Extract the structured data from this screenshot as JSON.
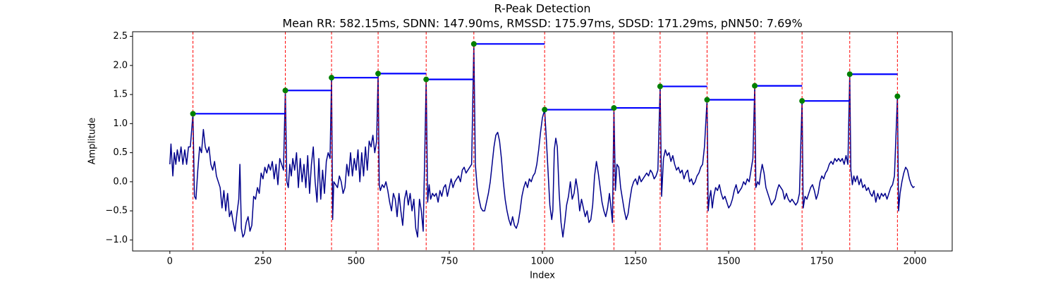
{
  "chart_data": {
    "type": "line",
    "title": "R-Peak Detection",
    "subtitle": "Mean RR: 582.15ms, SDNN: 147.90ms, RMSSD: 175.97ms, SDSD: 171.29ms, pNN50: 7.69%",
    "xlabel": "Index",
    "ylabel": "Amplitude",
    "xlim": [
      -100,
      2100
    ],
    "ylim": [
      -1.19,
      2.58
    ],
    "xticks": [
      0,
      250,
      500,
      750,
      1000,
      1250,
      1500,
      1750,
      2000
    ],
    "yticks": [
      {
        "value": -1.0,
        "label": "−1.0"
      },
      {
        "value": -0.5,
        "label": "−0.5"
      },
      {
        "value": 0,
        "label": "0.0"
      },
      0.5,
      {
        "value": 1,
        "label": "1.0"
      },
      1.5,
      {
        "value": 2,
        "label": "2.0"
      },
      2.5
    ],
    "x": [
      0,
      3,
      8,
      12,
      16,
      20,
      25,
      30,
      35,
      40,
      45,
      50,
      55,
      62,
      66,
      70,
      75,
      80,
      85,
      90,
      95,
      100,
      105,
      110,
      115,
      120,
      125,
      130,
      135,
      140,
      145,
      150,
      155,
      160,
      165,
      170,
      175,
      180,
      185,
      188,
      192,
      196,
      200,
      205,
      210,
      215,
      220,
      225,
      230,
      235,
      240,
      245,
      250,
      255,
      260,
      265,
      270,
      275,
      280,
      285,
      290,
      295,
      300,
      305,
      310,
      314,
      318,
      322,
      326,
      330,
      335,
      340,
      345,
      350,
      355,
      360,
      365,
      370,
      375,
      380,
      385,
      390,
      395,
      400,
      405,
      410,
      415,
      420,
      425,
      430,
      434,
      437,
      440,
      445,
      450,
      455,
      460,
      465,
      470,
      475,
      480,
      485,
      490,
      495,
      500,
      505,
      510,
      515,
      520,
      525,
      530,
      535,
      540,
      545,
      550,
      555,
      559,
      562,
      565,
      570,
      575,
      580,
      585,
      590,
      595,
      600,
      605,
      610,
      615,
      620,
      625,
      630,
      635,
      640,
      645,
      650,
      655,
      660,
      665,
      670,
      675,
      680,
      684,
      688,
      692,
      696,
      700,
      705,
      710,
      715,
      720,
      725,
      730,
      735,
      740,
      745,
      750,
      755,
      760,
      765,
      770,
      775,
      780,
      785,
      790,
      795,
      800,
      805,
      810,
      816,
      820,
      825,
      830,
      835,
      840,
      845,
      850,
      855,
      860,
      865,
      870,
      875,
      880,
      885,
      890,
      895,
      900,
      905,
      910,
      915,
      920,
      925,
      930,
      935,
      940,
      945,
      950,
      955,
      960,
      965,
      970,
      975,
      980,
      985,
      990,
      995,
      1000,
      1006,
      1010,
      1015,
      1020,
      1025,
      1028,
      1032,
      1036,
      1040,
      1045,
      1050,
      1055,
      1060,
      1065,
      1070,
      1075,
      1080,
      1085,
      1090,
      1095,
      1100,
      1105,
      1110,
      1115,
      1120,
      1125,
      1130,
      1135,
      1140,
      1145,
      1150,
      1155,
      1160,
      1165,
      1170,
      1175,
      1180,
      1185,
      1188,
      1192,
      1196,
      1200,
      1205,
      1210,
      1215,
      1220,
      1225,
      1230,
      1235,
      1240,
      1245,
      1250,
      1255,
      1260,
      1265,
      1270,
      1275,
      1280,
      1285,
      1290,
      1295,
      1300,
      1305,
      1310,
      1316,
      1320,
      1325,
      1330,
      1335,
      1340,
      1345,
      1350,
      1355,
      1360,
      1365,
      1370,
      1375,
      1380,
      1385,
      1390,
      1395,
      1400,
      1405,
      1410,
      1415,
      1420,
      1425,
      1430,
      1435,
      1442,
      1445,
      1448,
      1452,
      1456,
      1460,
      1465,
      1470,
      1475,
      1480,
      1485,
      1490,
      1495,
      1500,
      1505,
      1510,
      1515,
      1520,
      1525,
      1530,
      1535,
      1540,
      1545,
      1550,
      1555,
      1560,
      1565,
      1570,
      1573,
      1578,
      1582,
      1586,
      1590,
      1595,
      1600,
      1605,
      1610,
      1615,
      1620,
      1625,
      1630,
      1635,
      1640,
      1645,
      1650,
      1655,
      1660,
      1665,
      1670,
      1675,
      1680,
      1685,
      1690,
      1697,
      1700,
      1705,
      1710,
      1715,
      1720,
      1725,
      1730,
      1735,
      1740,
      1745,
      1750,
      1755,
      1760,
      1765,
      1770,
      1775,
      1780,
      1785,
      1790,
      1795,
      1800,
      1805,
      1810,
      1815,
      1820,
      1825,
      1828,
      1832,
      1836,
      1840,
      1845,
      1850,
      1855,
      1860,
      1865,
      1870,
      1875,
      1880,
      1885,
      1890,
      1895,
      1900,
      1905,
      1910,
      1915,
      1920,
      1925,
      1930,
      1935,
      1940,
      1945,
      1953,
      1956,
      1960,
      1965,
      1970,
      1975,
      1980,
      1985,
      1990,
      1995,
      1999
    ],
    "series": [
      {
        "color": "#00008b",
        "values": [
          0.3,
          0.65,
          0.1,
          0.5,
          0.3,
          0.55,
          0.35,
          0.6,
          0.3,
          0.55,
          0.3,
          0.6,
          0.6,
          1.17,
          -0.25,
          -0.3,
          0.2,
          0.6,
          0.5,
          0.9,
          0.6,
          0.5,
          0.6,
          0.3,
          0.2,
          0.35,
          0.1,
          0.0,
          -0.1,
          -0.45,
          -0.15,
          -0.5,
          -0.2,
          -0.6,
          -0.5,
          -0.7,
          -0.85,
          -0.55,
          -0.3,
          0.3,
          -0.8,
          -0.95,
          -0.9,
          -0.7,
          -0.6,
          -0.85,
          -0.75,
          -0.25,
          -0.3,
          -0.1,
          -0.2,
          0.15,
          0.05,
          0.25,
          0.15,
          0.3,
          0.2,
          0.35,
          0.05,
          0.3,
          -0.05,
          0.4,
          0.3,
          0.2,
          1.57,
          0.0,
          -0.1,
          0.3,
          0.1,
          0.4,
          0.2,
          0.5,
          -0.1,
          0.4,
          0.0,
          0.3,
          -0.1,
          0.45,
          -0.2,
          0.3,
          0.6,
          0.0,
          -0.35,
          0.4,
          -0.3,
          0.2,
          -0.2,
          0.35,
          0.5,
          0.4,
          1.79,
          -0.65,
          0.0,
          -0.05,
          -0.1,
          0.1,
          0.0,
          -0.2,
          -0.1,
          0.3,
          0.1,
          0.5,
          0.1,
          0.4,
          0.2,
          0.55,
          0.0,
          0.5,
          0.1,
          0.6,
          0.2,
          0.7,
          0.6,
          0.8,
          0.5,
          0.7,
          1.86,
          -0.05,
          -0.15,
          -0.05,
          -0.1,
          0.0,
          -0.15,
          -0.35,
          -0.5,
          -0.2,
          -0.3,
          -0.6,
          -0.2,
          -0.5,
          -0.75,
          -0.3,
          -0.15,
          -0.4,
          -0.2,
          -0.5,
          -0.3,
          -0.8,
          -0.95,
          -0.3,
          -0.5,
          -0.85,
          0.4,
          1.76,
          -0.35,
          -0.05,
          -0.3,
          -0.2,
          -0.25,
          -0.2,
          -0.35,
          -0.15,
          -0.25,
          -0.1,
          -0.05,
          -0.25,
          -0.1,
          0.05,
          -0.1,
          0.0,
          0.05,
          0.1,
          0.0,
          0.2,
          0.25,
          0.15,
          0.2,
          0.25,
          0.3,
          2.37,
          0.3,
          -0.1,
          -0.3,
          -0.45,
          -0.5,
          -0.5,
          -0.35,
          -0.2,
          0.0,
          0.3,
          0.6,
          0.8,
          0.85,
          0.7,
          0.4,
          0.0,
          -0.3,
          -0.5,
          -0.65,
          -0.75,
          -0.6,
          -0.75,
          -0.8,
          -0.7,
          -0.5,
          -0.25,
          -0.1,
          0.0,
          -0.1,
          0.05,
          0.0,
          0.1,
          0.15,
          0.3,
          0.55,
          0.85,
          1.1,
          1.24,
          0.8,
          0.2,
          -0.4,
          -0.65,
          -0.5,
          0.55,
          0.75,
          0.6,
          -0.2,
          -0.7,
          -0.95,
          -0.7,
          -0.4,
          -0.25,
          0.0,
          -0.3,
          -0.2,
          0.05,
          -0.15,
          -0.5,
          -0.3,
          -0.45,
          -0.6,
          -0.5,
          -0.7,
          -0.65,
          -0.4,
          0.1,
          0.35,
          0.15,
          -0.1,
          -0.35,
          -0.5,
          -0.6,
          -0.45,
          -0.2,
          -0.5,
          -0.7,
          1.27,
          -0.15,
          0.3,
          0.25,
          -0.1,
          -0.3,
          -0.5,
          -0.65,
          -0.55,
          -0.3,
          -0.1,
          0.0,
          0.05,
          -0.05,
          0.1,
          0.0,
          0.05,
          0.1,
          0.15,
          0.1,
          0.2,
          0.15,
          0.05,
          0.1,
          0.2,
          1.64,
          -0.25,
          0.4,
          0.55,
          0.45,
          0.5,
          0.35,
          0.45,
          0.3,
          0.2,
          0.25,
          0.15,
          0.2,
          0.05,
          0.15,
          0.2,
          0.0,
          0.05,
          -0.05,
          0.0,
          0.1,
          0.15,
          0.25,
          0.3,
          0.6,
          1.41,
          -0.5,
          -0.3,
          -0.15,
          -0.45,
          -0.25,
          -0.1,
          -0.15,
          -0.05,
          -0.2,
          -0.3,
          -0.25,
          -0.35,
          -0.45,
          -0.4,
          -0.3,
          -0.15,
          -0.05,
          -0.2,
          -0.15,
          -0.1,
          0.0,
          -0.05,
          0.05,
          0.0,
          0.2,
          0.4,
          1.65,
          -0.1,
          0.0,
          -0.05,
          0.15,
          0.3,
          0.15,
          -0.1,
          -0.2,
          -0.3,
          -0.4,
          -0.35,
          -0.3,
          -0.15,
          -0.05,
          -0.1,
          -0.15,
          -0.3,
          -0.2,
          -0.3,
          -0.35,
          -0.3,
          -0.35,
          -0.4,
          -0.35,
          -0.2,
          1.39,
          -0.45,
          -0.25,
          -0.3,
          -0.2,
          -0.1,
          -0.05,
          -0.15,
          -0.3,
          -0.2,
          0.0,
          0.1,
          0.05,
          0.15,
          0.2,
          0.3,
          0.35,
          0.3,
          0.4,
          0.35,
          0.4,
          0.35,
          0.4,
          0.3,
          0.45,
          0.3,
          1.85,
          0.2,
          -0.05,
          0.1,
          0.0,
          0.1,
          -0.05,
          0.05,
          -0.1,
          -0.05,
          -0.15,
          -0.1,
          -0.2,
          -0.25,
          -0.15,
          -0.35,
          -0.2,
          -0.3,
          -0.2,
          -0.25,
          -0.2,
          -0.3,
          -0.2,
          -0.1,
          -0.05,
          0.1,
          1.47,
          -0.5,
          -0.2,
          0.0,
          0.15,
          0.25,
          0.2,
          0.05,
          -0.05,
          -0.1,
          -0.08
        ]
      }
    ],
    "peaks": {
      "x": [
        62,
        310,
        434,
        559,
        688,
        816,
        1006,
        1192,
        1316,
        1442,
        1570,
        1697,
        1825,
        1953
      ],
      "values": [
        1.17,
        1.57,
        1.79,
        1.86,
        1.76,
        2.37,
        1.24,
        1.27,
        1.64,
        1.41,
        1.65,
        1.39,
        1.85,
        1.47
      ],
      "color": "green",
      "marker_line_color": "red",
      "interval_color": "blue"
    }
  }
}
